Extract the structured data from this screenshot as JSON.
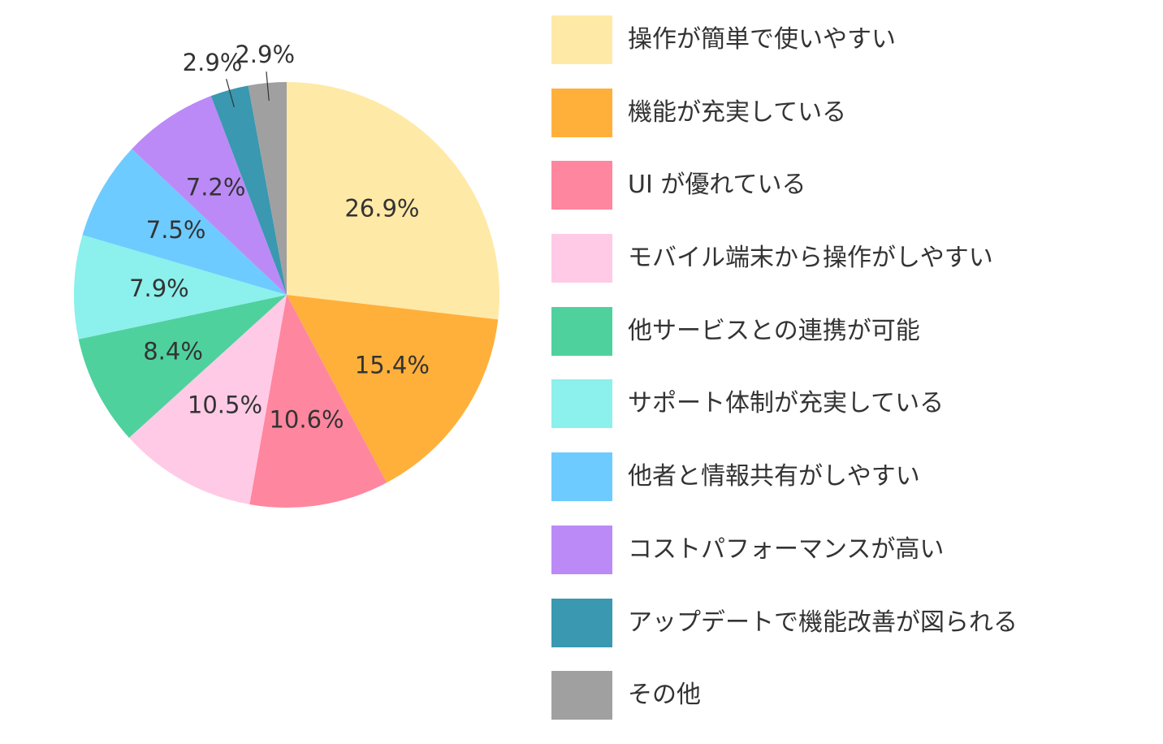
{
  "chart_data": {
    "type": "pie",
    "slices": [
      {
        "label": "操作が簡単で使いやすい",
        "value": 26.9,
        "value_label": "26.9%",
        "color": "#FFE9A6"
      },
      {
        "label": "機能が充実している",
        "value": 15.4,
        "value_label": "15.4%",
        "color": "#FFB03B"
      },
      {
        "label": "UI が優れている",
        "value": 10.6,
        "value_label": "10.6%",
        "color": "#FF869F"
      },
      {
        "label": "モバイル端末から操作がしやすい",
        "value": 10.5,
        "value_label": "10.5%",
        "color": "#FFCAE6"
      },
      {
        "label": "他サービスとの連携が可能",
        "value": 8.4,
        "value_label": "8.4%",
        "color": "#4FD19E"
      },
      {
        "label": "サポート体制が充実している",
        "value": 7.9,
        "value_label": "7.9%",
        "color": "#8CF0EC"
      },
      {
        "label": "他者と情報共有がしやすい",
        "value": 7.5,
        "value_label": "7.5%",
        "color": "#6DCBFF"
      },
      {
        "label": "コストパフォーマンスが高い",
        "value": 7.2,
        "value_label": "7.2%",
        "color": "#BB8AF7"
      },
      {
        "label": "アップデートで機能改善が図られる",
        "value": 2.9,
        "value_label": "2.9%",
        "color": "#3A98B0"
      },
      {
        "label": "その他",
        "value": 2.9,
        "value_label": "2.9%",
        "color": "#A0A0A0"
      }
    ],
    "start": "12 o'clock",
    "direction": "clockwise",
    "legend_position": "right"
  }
}
